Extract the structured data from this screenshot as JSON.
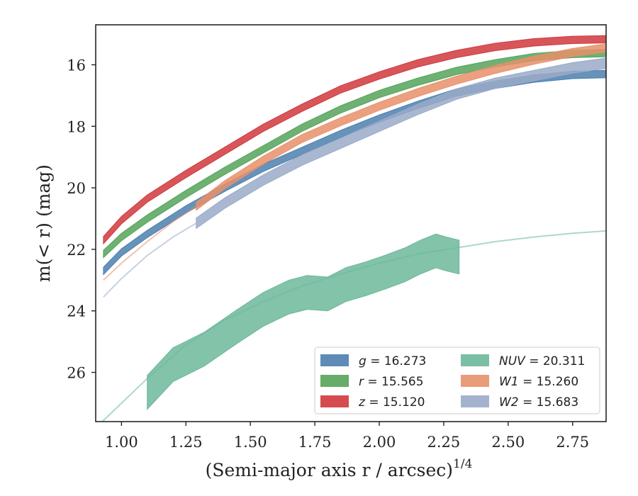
{
  "chart_data": {
    "type": "line",
    "title": "",
    "xlabel": "(Semi-major axis r / arcsec)",
    "xlabel_exponent": "1/4",
    "ylabel": "m(< r) (mag)",
    "xlim": [
      0.9,
      2.88
    ],
    "ylim": [
      27.6,
      14.7
    ],
    "y_inverted": true,
    "grid": false,
    "legend_position": "lower-right",
    "x_ticks": [
      "1.00",
      "1.25",
      "1.50",
      "1.75",
      "2.00",
      "2.25",
      "2.50",
      "2.75"
    ],
    "y_ticks": [
      "16",
      "18",
      "20",
      "22",
      "24",
      "26"
    ],
    "series": [
      {
        "name": "g = 16.273",
        "var": "g",
        "value": "16.273",
        "color": "#4c7fae",
        "x": [
          0.93,
          1.0,
          1.1,
          1.25,
          1.4,
          1.55,
          1.7,
          1.85,
          2.0,
          2.15,
          2.3,
          2.45,
          2.6,
          2.75,
          2.88
        ],
        "y": [
          22.7,
          22.1,
          21.5,
          20.7,
          20.0,
          19.35,
          18.8,
          18.25,
          17.75,
          17.3,
          16.9,
          16.65,
          16.45,
          16.33,
          16.3
        ],
        "band_halfwidth": 0.12
      },
      {
        "name": "r = 15.565",
        "var": "r",
        "value": "15.565",
        "color": "#55a35a",
        "x": [
          0.93,
          1.0,
          1.1,
          1.25,
          1.4,
          1.55,
          1.7,
          1.85,
          2.0,
          2.15,
          2.3,
          2.45,
          2.6,
          2.75,
          2.88
        ],
        "y": [
          22.15,
          21.6,
          21.0,
          20.2,
          19.45,
          18.75,
          18.05,
          17.45,
          16.95,
          16.55,
          16.2,
          15.95,
          15.75,
          15.65,
          15.62
        ],
        "band_halfwidth": 0.12
      },
      {
        "name": "z = 15.120",
        "var": "z",
        "value": "15.120",
        "color": "#d0383d",
        "x": [
          0.93,
          1.0,
          1.1,
          1.25,
          1.4,
          1.55,
          1.7,
          1.85,
          2.0,
          2.15,
          2.3,
          2.45,
          2.6,
          2.75,
          2.88
        ],
        "y": [
          21.7,
          21.05,
          20.35,
          19.55,
          18.8,
          18.05,
          17.4,
          16.8,
          16.35,
          15.95,
          15.65,
          15.42,
          15.27,
          15.19,
          15.17
        ],
        "band_halfwidth": 0.12
      },
      {
        "name": "NUV = 20.311",
        "var": "NUV",
        "value": "20.311",
        "color": "#6cb89a",
        "x": [
          1.1,
          1.2,
          1.32,
          1.45,
          1.55,
          1.65,
          1.72,
          1.8,
          1.87,
          1.95,
          2.02,
          2.1,
          2.16,
          2.22,
          2.26,
          2.31
        ],
        "y": [
          26.65,
          25.75,
          25.25,
          24.5,
          23.95,
          23.55,
          23.4,
          23.45,
          23.15,
          22.95,
          22.75,
          22.5,
          22.25,
          22.05,
          22.15,
          22.25
        ],
        "band_halfwidth": 0.55,
        "model_x": [
          0.9,
          1.0,
          1.1,
          1.25,
          1.4,
          1.55,
          1.7,
          1.85,
          2.0,
          2.15,
          2.3,
          2.45,
          2.6,
          2.75,
          2.88
        ],
        "model_y": [
          27.8,
          27.0,
          26.2,
          25.1,
          24.3,
          23.7,
          23.2,
          22.8,
          22.45,
          22.15,
          21.95,
          21.75,
          21.6,
          21.48,
          21.4
        ]
      },
      {
        "name": "W1 = 15.260",
        "var": "W1",
        "value": "15.260",
        "color": "#e8906a",
        "x": [
          1.29,
          1.4,
          1.55,
          1.7,
          1.85,
          2.0,
          2.15,
          2.3,
          2.45,
          2.6,
          2.75,
          2.88
        ],
        "y": [
          20.6,
          19.9,
          19.1,
          18.4,
          17.85,
          17.35,
          16.9,
          16.5,
          16.15,
          15.85,
          15.6,
          15.45
        ],
        "band_halfwidth": 0.13,
        "model_x": [
          0.93,
          1.0,
          1.1,
          1.2,
          1.29
        ],
        "model_y": [
          23.0,
          22.45,
          21.75,
          21.1,
          20.6
        ]
      },
      {
        "name": "W2 = 15.683",
        "var": "W2",
        "value": "15.683",
        "color": "#9aaac8",
        "x": [
          1.29,
          1.4,
          1.55,
          1.7,
          1.85,
          2.0,
          2.15,
          2.3,
          2.45,
          2.6,
          2.75,
          2.88
        ],
        "y": [
          21.15,
          20.5,
          19.75,
          19.1,
          18.55,
          18.0,
          17.45,
          16.95,
          16.6,
          16.35,
          16.1,
          15.95
        ],
        "band_halfwidth": 0.17,
        "model_x": [
          0.93,
          1.0,
          1.1,
          1.2,
          1.29
        ],
        "model_y": [
          23.55,
          22.95,
          22.2,
          21.6,
          21.15
        ]
      }
    ]
  }
}
